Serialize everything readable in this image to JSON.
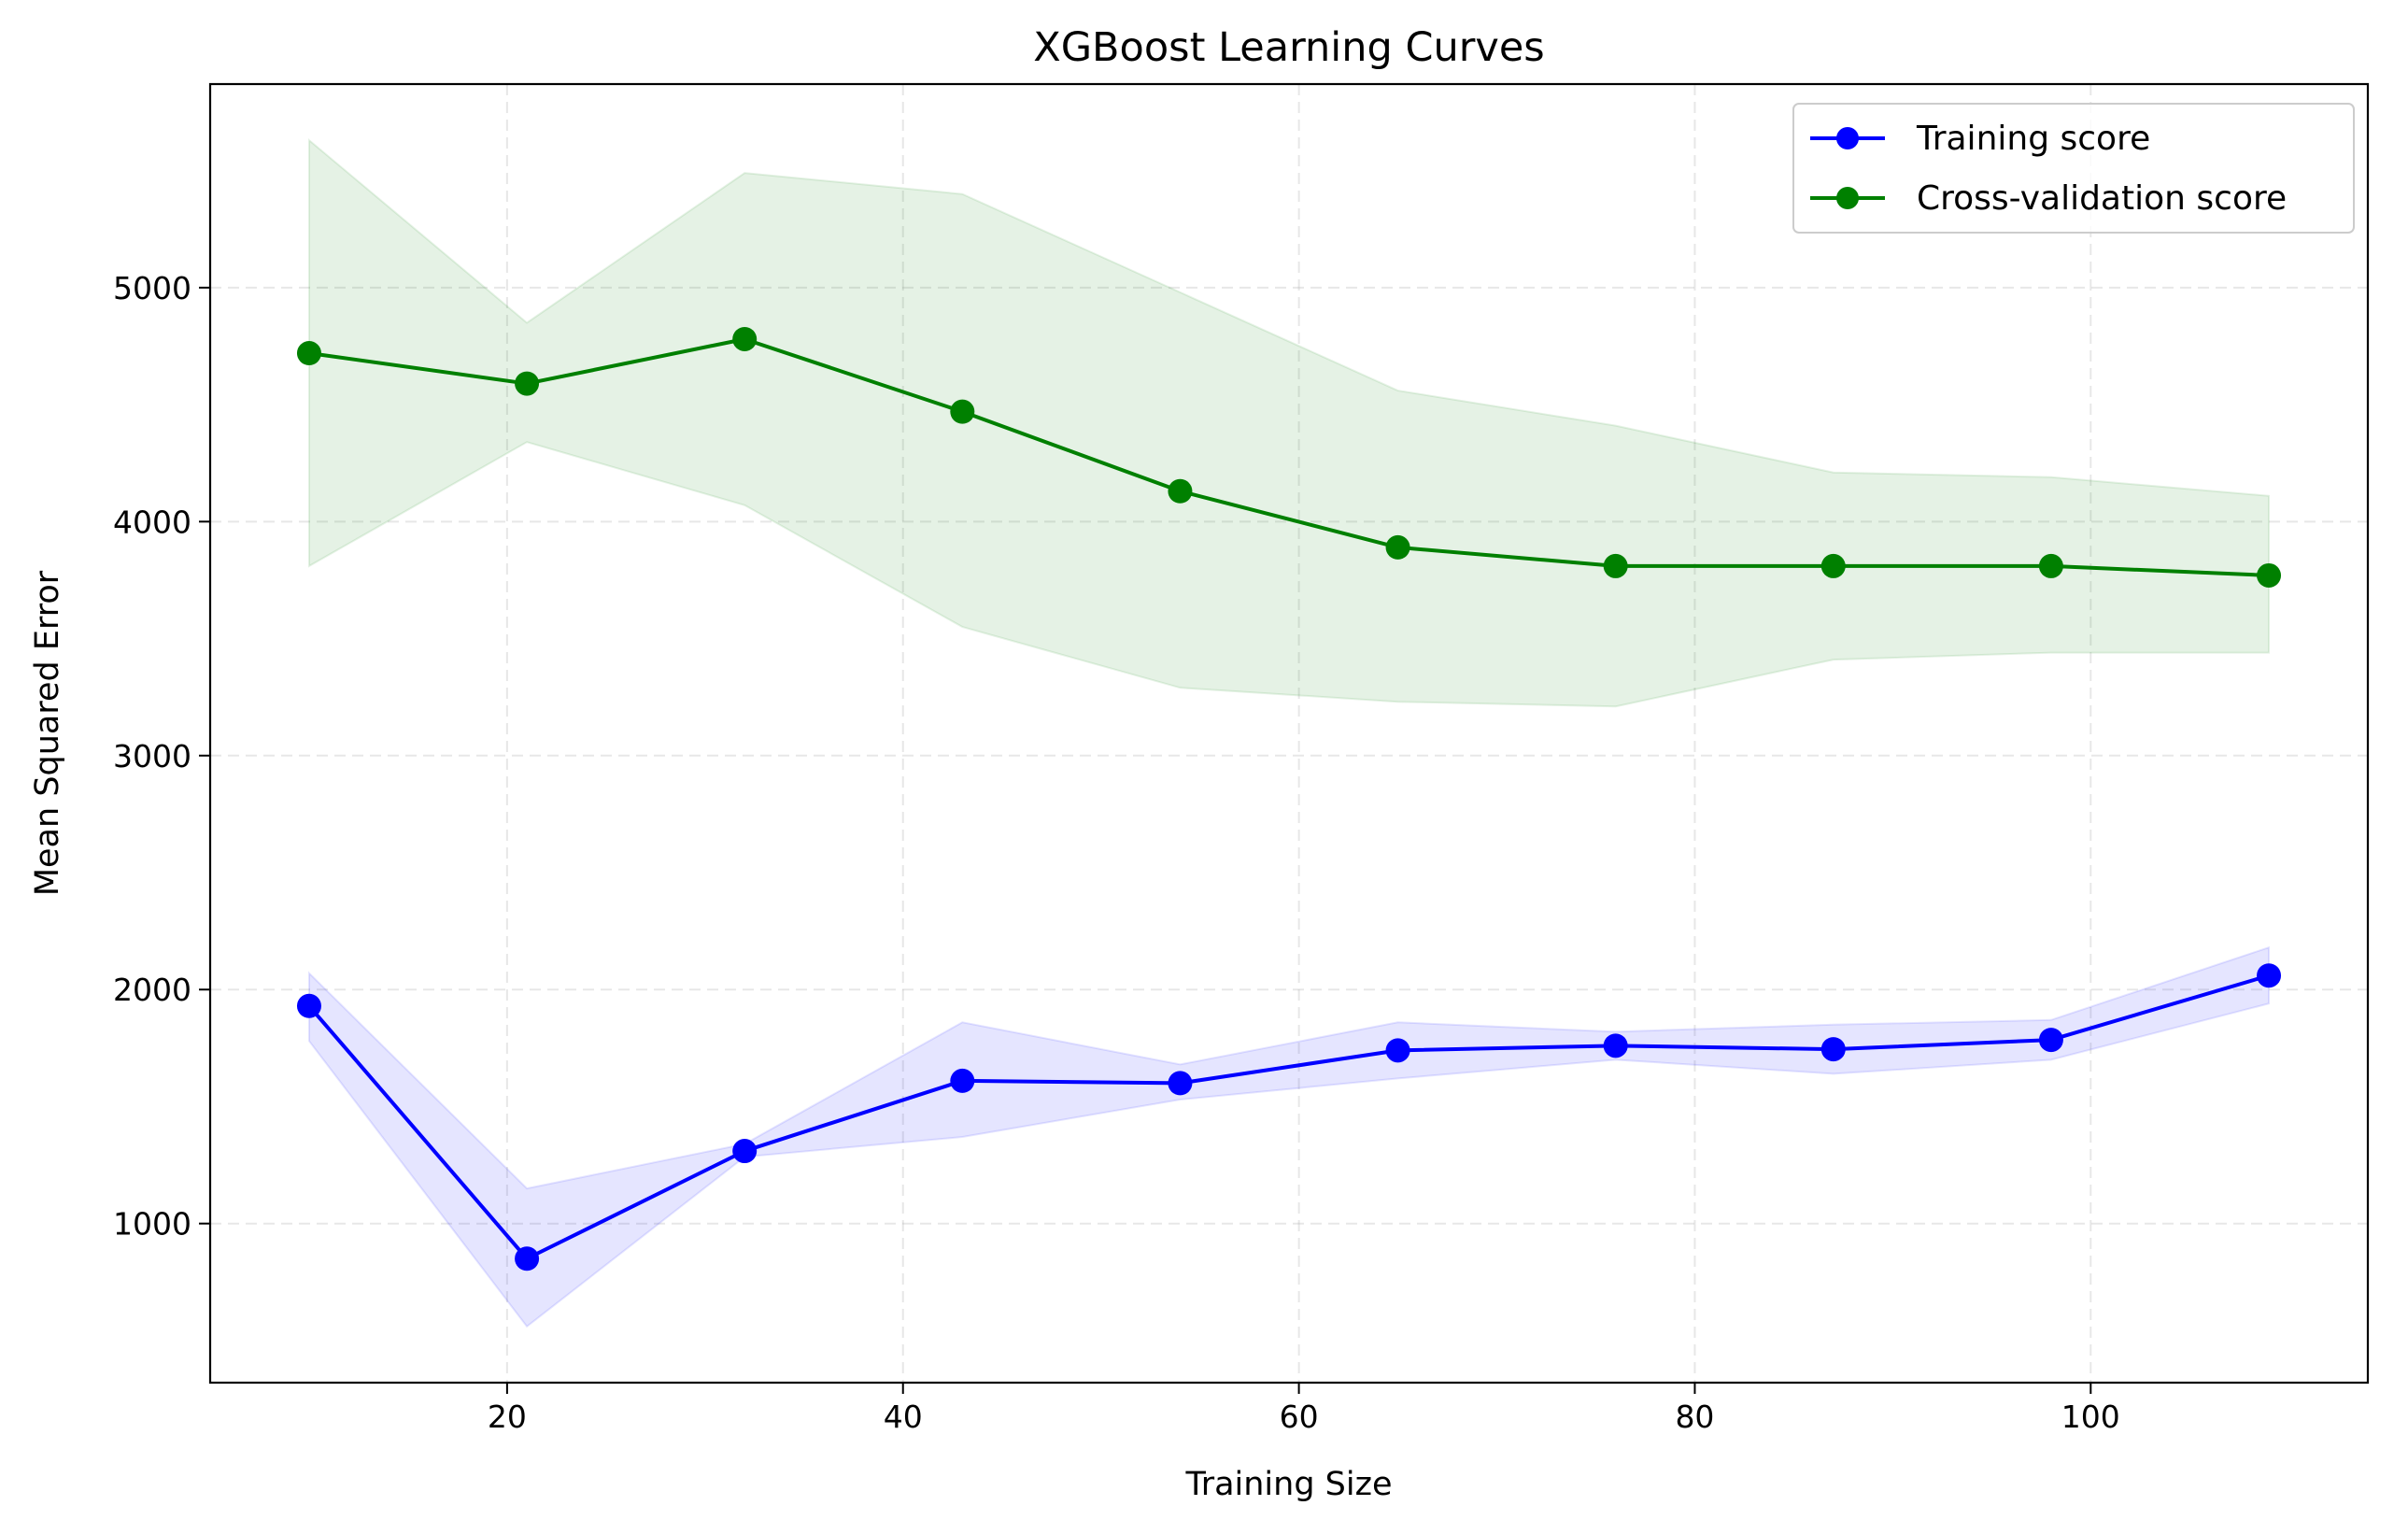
{
  "chart_data": {
    "type": "line",
    "title": "XGBoost Learning Curves",
    "xlabel": "Training Size",
    "ylabel": "Mean Squared Error",
    "xlim": [
      5,
      114
    ],
    "ylim": [
      320,
      5870
    ],
    "xticks": [
      20,
      40,
      60,
      80,
      100
    ],
    "yticks": [
      1000,
      2000,
      3000,
      4000,
      5000
    ],
    "grid": true,
    "legend_position": "upper right",
    "x": [
      10,
      21,
      32,
      43,
      54,
      65,
      76,
      87,
      98,
      109
    ],
    "series": [
      {
        "name": "Training score",
        "color": "#0000ff",
        "band_color": "#0000ff",
        "marker": "circle",
        "values": [
          1930,
          850,
          1310,
          1610,
          1600,
          1740,
          1760,
          1745,
          1785,
          2060
        ],
        "band_upper": [
          2070,
          1150,
          1340,
          1860,
          1680,
          1860,
          1820,
          1850,
          1870,
          2180
        ],
        "band_lower": [
          1780,
          560,
          1285,
          1370,
          1530,
          1620,
          1700,
          1640,
          1700,
          1940
        ]
      },
      {
        "name": "Cross-validation score",
        "color": "#008000",
        "band_color": "#008000",
        "marker": "circle",
        "values": [
          4720,
          4590,
          4780,
          4470,
          4130,
          3890,
          3810,
          3810,
          3810,
          3770
        ],
        "band_upper": [
          5630,
          4850,
          5490,
          5400,
          4980,
          4560,
          4410,
          4210,
          4190,
          4110
        ],
        "band_lower": [
          3810,
          4340,
          4070,
          3550,
          3290,
          3230,
          3210,
          3410,
          3440,
          3440
        ]
      }
    ]
  }
}
